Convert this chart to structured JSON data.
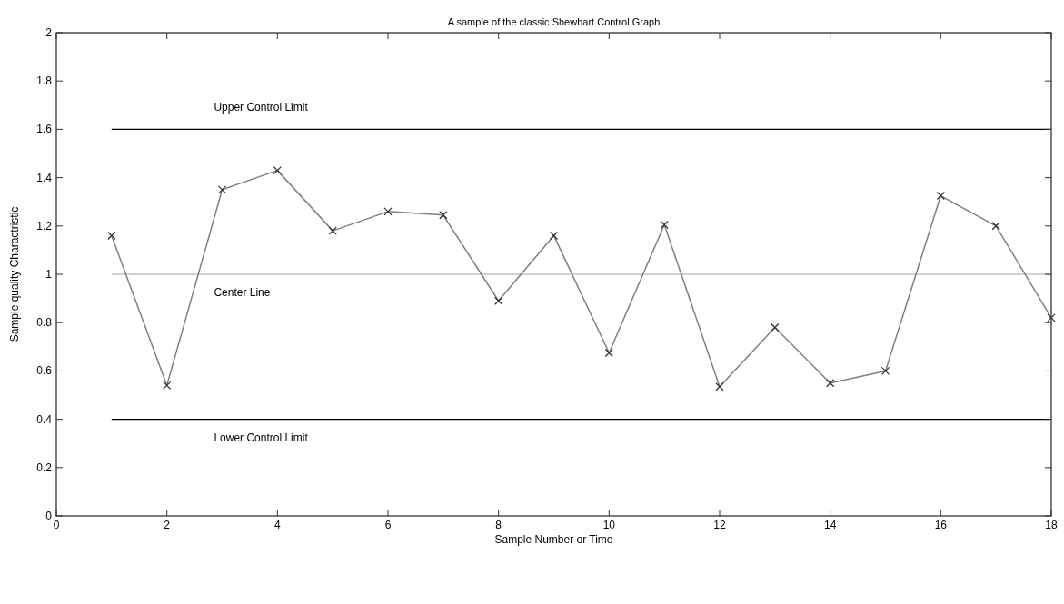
{
  "chart_data": {
    "type": "line",
    "title": "A sample of the classic Shewhart Control Graph",
    "xlabel": "Sample Number or Time",
    "ylabel": "Sample quality Charactristic",
    "x": [
      1,
      2,
      3,
      4,
      5,
      6,
      7,
      8,
      9,
      10,
      11,
      12,
      13,
      14,
      15,
      16,
      17,
      18
    ],
    "series": [
      {
        "color": "#7f7f7f",
        "values": [
          1.16,
          0.54,
          1.35,
          1.43,
          1.18,
          1.26,
          1.245,
          0.89,
          1.16,
          0.675,
          1.205,
          0.535,
          0.78,
          0.55,
          0.6,
          1.325,
          1.2,
          0.82
        ]
      }
    ],
    "xlim": [
      0,
      18
    ],
    "xticks": [
      0,
      2,
      4,
      6,
      8,
      10,
      12,
      14,
      16,
      18
    ],
    "ylim": [
      0,
      2
    ],
    "yticks": [
      0,
      0.2,
      0.4,
      0.6,
      0.8,
      1,
      1.2,
      1.4,
      1.6,
      1.8,
      2
    ],
    "ref_lines": [
      {
        "axis": "y",
        "value": 1.6,
        "label": "Upper Control Limit",
        "color": "#000000"
      },
      {
        "axis": "y",
        "value": 1,
        "label": "Center Line",
        "color": "#c0c0c0"
      },
      {
        "axis": "y",
        "value": 0.4,
        "label": "Lower  Control Limit",
        "color": "#000000"
      }
    ],
    "marker": "cross",
    "line_style": "solid",
    "grid": false
  }
}
